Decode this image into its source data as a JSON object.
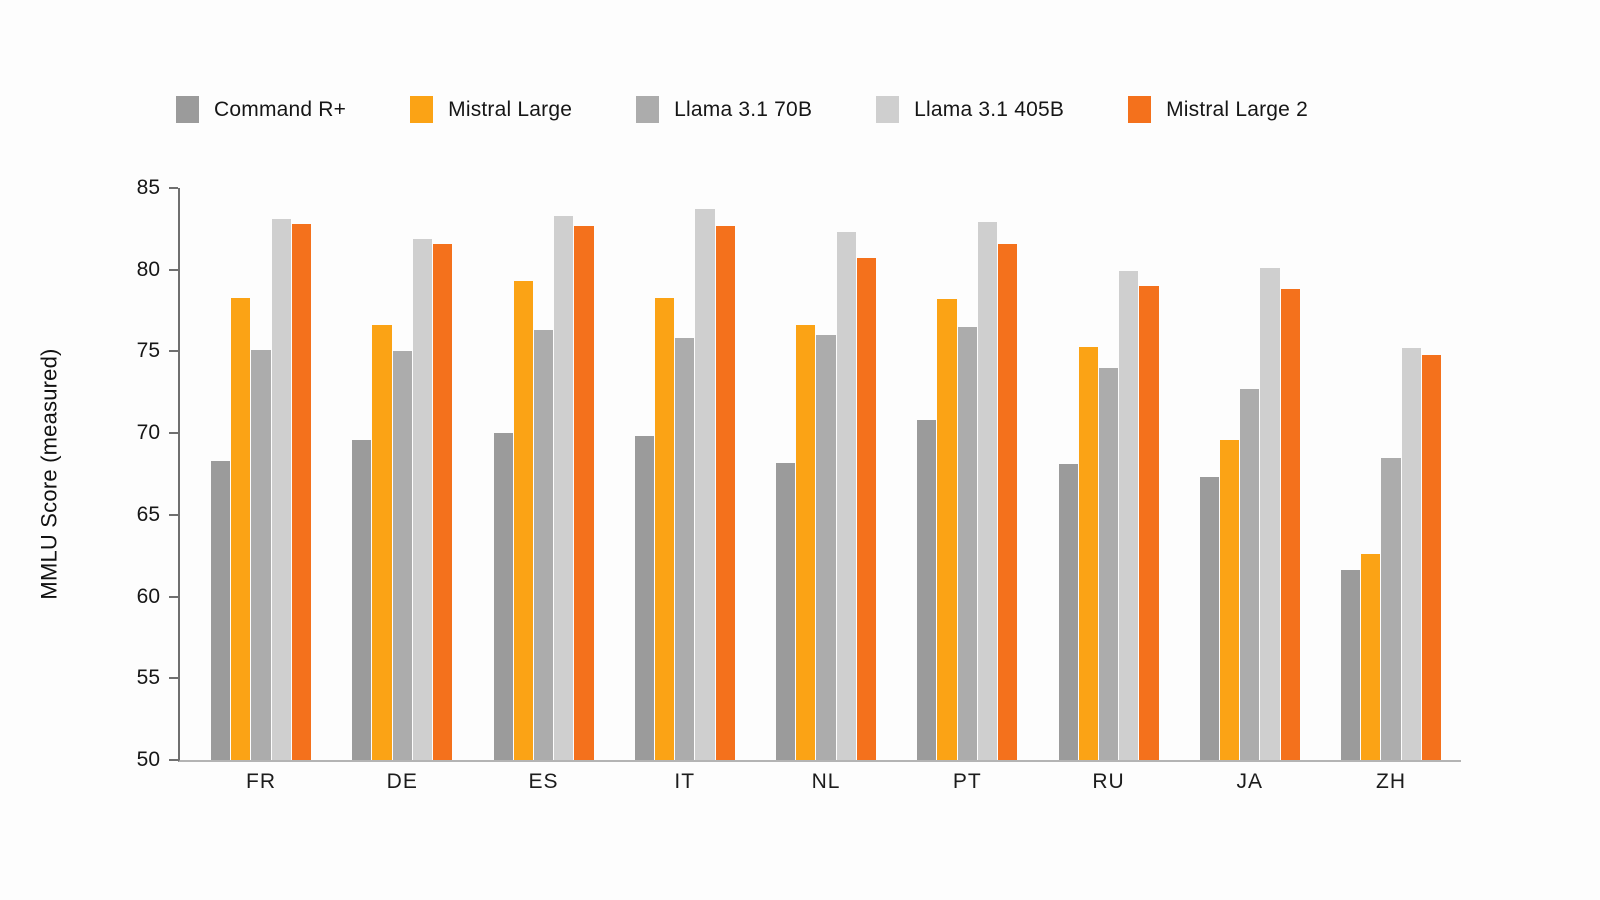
{
  "colors": {
    "background": "#FDFDFD",
    "y_axis_line": "#6F6F6F",
    "x_axis_line": "#B4B4B4",
    "text": "#161616"
  },
  "chart_data": {
    "type": "bar",
    "title": "",
    "xlabel": "",
    "ylabel": "MMLU Score (measured)",
    "ylim": [
      50,
      85
    ],
    "yticks": [
      50,
      55,
      60,
      65,
      70,
      75,
      80,
      85
    ],
    "grid": false,
    "legend_position": "top",
    "categories": [
      "FR",
      "DE",
      "ES",
      "IT",
      "NL",
      "PT",
      "RU",
      "JA",
      "ZH"
    ],
    "series": [
      {
        "name": "Command R+",
        "color": "#9B9B9B",
        "values": [
          68.3,
          69.6,
          70.0,
          69.8,
          68.2,
          70.8,
          68.1,
          67.3,
          61.6
        ]
      },
      {
        "name": "Mistral Large",
        "color": "#FBA315",
        "values": [
          78.3,
          76.6,
          79.3,
          78.3,
          76.6,
          78.2,
          75.3,
          69.6,
          62.6
        ]
      },
      {
        "name": "Llama 3.1 70B",
        "color": "#ACACAC",
        "values": [
          75.1,
          75.0,
          76.3,
          75.8,
          76.0,
          76.5,
          74.0,
          72.7,
          68.5
        ]
      },
      {
        "name": "Llama 3.1 405B",
        "color": "#CFCFCF",
        "values": [
          83.1,
          81.9,
          83.3,
          83.7,
          82.3,
          82.9,
          79.9,
          80.1,
          75.2
        ]
      },
      {
        "name": "Mistral Large 2",
        "color": "#F4711C",
        "values": [
          82.8,
          81.6,
          82.7,
          82.7,
          80.7,
          81.6,
          79.0,
          78.8,
          74.8
        ]
      }
    ]
  }
}
